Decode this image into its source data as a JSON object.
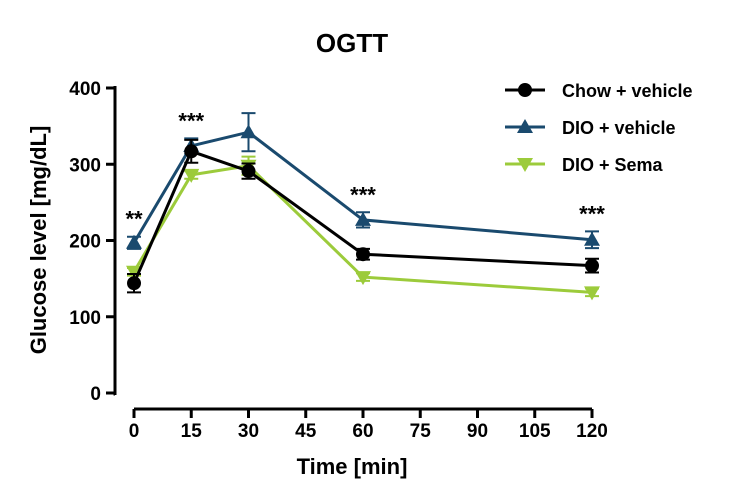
{
  "chart_data": {
    "type": "line",
    "title": "OGTT",
    "xlabel": "Time [min]",
    "ylabel": "Glucose level [mg/dL]",
    "xlim": [
      0,
      120
    ],
    "ylim": [
      0,
      400
    ],
    "xticks": [
      0,
      15,
      30,
      45,
      60,
      75,
      90,
      105,
      120
    ],
    "yticks": [
      0,
      100,
      200,
      300,
      400
    ],
    "grid": false,
    "legend_position": "top-right",
    "x": [
      0,
      15,
      30,
      60,
      120
    ],
    "series": [
      {
        "name": "Chow + vehicle",
        "color": "#000000",
        "marker": "circle",
        "values": [
          144,
          317,
          291,
          182,
          167
        ],
        "errors": [
          12,
          15,
          10,
          7,
          9
        ]
      },
      {
        "name": "DIO + vehicle",
        "color": "#1a4a6e",
        "marker": "triangle-up",
        "values": [
          197,
          324,
          342,
          227,
          201
        ],
        "errors": [
          8,
          10,
          25,
          10,
          11
        ]
      },
      {
        "name": "DIO + Sema",
        "color": "#9ccb3b",
        "marker": "triangle-down",
        "values": [
          159,
          286,
          298,
          152,
          132
        ],
        "errors": [
          5,
          5,
          12,
          5,
          5
        ]
      }
    ],
    "annotations": [
      {
        "x": 0,
        "text": "**"
      },
      {
        "x": 15,
        "text": "***"
      },
      {
        "x": 60,
        "text": "***"
      },
      {
        "x": 120,
        "text": "***"
      }
    ]
  }
}
